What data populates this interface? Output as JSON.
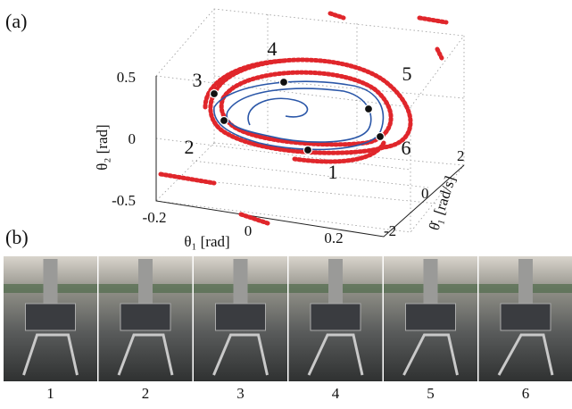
{
  "figure": {
    "panel_a": {
      "label": "(a)",
      "z_axis": {
        "label": "θ₂ [rad]",
        "ticks": [
          "0.5",
          "0",
          "-0.5"
        ]
      },
      "x_axis": {
        "label": "θ₁ [rad]",
        "ticks": [
          "-0.2",
          "0",
          "0.2"
        ]
      },
      "y_axis": {
        "label": "θ̇₁ [rad/s]",
        "ticks": [
          "2",
          "0",
          "-2"
        ]
      },
      "phase_labels": [
        "1",
        "2",
        "3",
        "4",
        "5",
        "6"
      ]
    },
    "panel_b": {
      "label": "(b)",
      "captions": [
        "1",
        "2",
        "3",
        "4",
        "5",
        "6"
      ]
    }
  }
}
